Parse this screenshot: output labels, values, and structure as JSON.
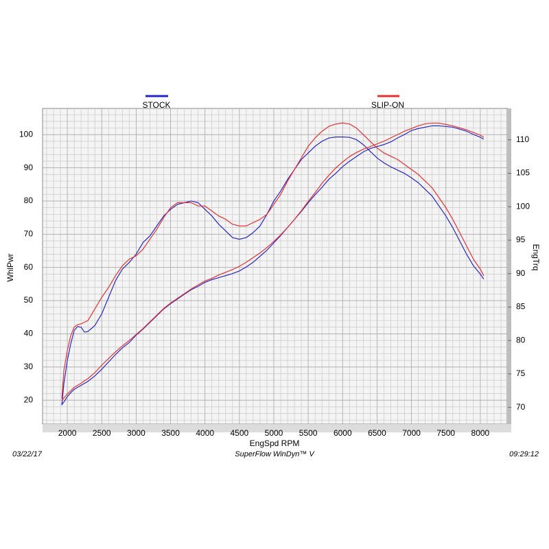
{
  "chart_data": {
    "type": "line",
    "xlabel": "EngSpd  RPM",
    "ylabel": "WhlPwr",
    "y2label": "EngTrq",
    "footer_left": "03/22/17",
    "footer_center": "SuperFlow WinDyn™ V",
    "footer_right": "09:29:12",
    "x": [
      1920,
      1950,
      2000,
      2050,
      2100,
      2150,
      2200,
      2250,
      2300,
      2400,
      2500,
      2600,
      2700,
      2800,
      2900,
      3000,
      3100,
      3200,
      3300,
      3400,
      3500,
      3600,
      3700,
      3800,
      3900,
      4000,
      4100,
      4200,
      4300,
      4400,
      4500,
      4600,
      4700,
      4800,
      4900,
      5000,
      5100,
      5200,
      5300,
      5400,
      5500,
      5600,
      5700,
      5800,
      5900,
      6000,
      6100,
      6200,
      6300,
      6400,
      6500,
      6600,
      6700,
      6800,
      6900,
      7000,
      7100,
      7200,
      7300,
      7400,
      7500,
      7600,
      7700,
      7800,
      7900,
      8000,
      8050
    ],
    "series": [
      {
        "name": "STOCK",
        "color": "#2626c8",
        "values": [
          18.5,
          25,
          32,
          37,
          41,
          42.2,
          42,
          40.5,
          40.7,
          42.5,
          46,
          51,
          56,
          59.5,
          61.5,
          64,
          67.5,
          69.5,
          72.5,
          75.5,
          77.5,
          79,
          79.5,
          80,
          79.5,
          77.5,
          75.5,
          73,
          71,
          69,
          68.5,
          69,
          70.5,
          72.5,
          76,
          80,
          83,
          86.5,
          89.5,
          92.5,
          94.5,
          96.5,
          98,
          99,
          99.3,
          99.3,
          99.2,
          98.5,
          97,
          95,
          93,
          91.5,
          90.3,
          89.3,
          88.3,
          87,
          85.5,
          83.5,
          81.5,
          78.5,
          75.5,
          72,
          68,
          64,
          60.5,
          58,
          56.5
        ],
        "y2values": [
          70.4,
          70.8,
          71.6,
          72.2,
          72.7,
          73,
          73.3,
          73.6,
          73.9,
          74.7,
          75.7,
          76.8,
          77.9,
          78.9,
          79.7,
          80.8,
          81.7,
          82.7,
          83.7,
          84.7,
          85.5,
          86.2,
          86.9,
          87.6,
          88.1,
          88.7,
          89.1,
          89.4,
          89.7,
          90,
          90.4,
          91,
          91.7,
          92.6,
          93.5,
          94.6,
          95.7,
          96.9,
          98.1,
          99.3,
          100.6,
          101.8,
          102.9,
          104.1,
          105,
          106,
          106.8,
          107.5,
          108.2,
          108.7,
          109,
          109.3,
          109.7,
          110.3,
          110.8,
          111.4,
          111.7,
          111.9,
          112.1,
          112.1,
          112,
          111.9,
          111.6,
          111.3,
          110.8,
          110.4,
          110.1
        ]
      },
      {
        "name": "SLIP-ON",
        "color": "#e83030",
        "values": [
          20.5,
          29,
          35,
          39.5,
          42,
          42.8,
          43,
          43.5,
          44,
          47.5,
          51,
          54,
          57.5,
          60.5,
          62.5,
          63.5,
          65.5,
          68.5,
          71.5,
          75,
          78,
          79.5,
          79.5,
          79.5,
          78.5,
          78.5,
          77,
          75.5,
          74.5,
          73,
          72.5,
          72.5,
          73.5,
          74.5,
          76,
          79,
          82,
          86,
          89.5,
          93,
          96.5,
          99,
          101,
          102.5,
          103.2,
          103.5,
          103.2,
          102,
          100,
          98,
          96,
          94.5,
          93.5,
          92.5,
          91,
          89.5,
          88,
          86,
          84,
          81,
          78,
          74.5,
          70.5,
          66.5,
          62.5,
          59.5,
          57.5
        ],
        "y2values": [
          71,
          71.4,
          72,
          72.5,
          73,
          73.3,
          73.6,
          74,
          74.3,
          75.2,
          76.3,
          77.3,
          78.3,
          79.2,
          80,
          80.9,
          81.8,
          82.8,
          83.8,
          84.8,
          85.6,
          86.3,
          87,
          87.7,
          88.3,
          88.9,
          89.3,
          89.8,
          90.2,
          90.6,
          91.1,
          91.7,
          92.4,
          93.1,
          93.9,
          94.8,
          95.8,
          96.9,
          98.1,
          99.4,
          100.8,
          102.1,
          103.5,
          104.7,
          105.8,
          106.7,
          107.5,
          108.1,
          108.6,
          109,
          109.4,
          109.8,
          110.3,
          110.8,
          111.3,
          111.7,
          112.1,
          112.4,
          112.5,
          112.5,
          112.3,
          112.1,
          111.8,
          111.5,
          111.1,
          110.7,
          110.4
        ]
      }
    ],
    "xlim": [
      1640,
      8400
    ],
    "xticks": [
      2000,
      2500,
      3000,
      3500,
      4000,
      4500,
      5000,
      5500,
      6000,
      6500,
      7000,
      7500,
      8000
    ],
    "ylim": [
      12.8,
      107.9
    ],
    "yticks": [
      20,
      30,
      40,
      50,
      60,
      70,
      80,
      90,
      100
    ],
    "y2lim": [
      67.5,
      114.7
    ],
    "y2ticks": [
      70,
      75,
      80,
      85,
      90,
      95,
      100,
      105,
      110
    ],
    "grid": true,
    "xminor": 100,
    "yminor": 2
  }
}
